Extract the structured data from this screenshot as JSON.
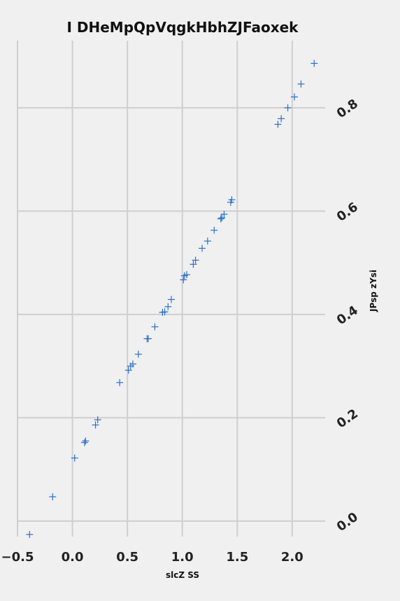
{
  "chart_data": {
    "type": "scatter",
    "title": "I DHeMpQpVqgkHbhZJFaoxek",
    "xlabel": "slcZ SS",
    "ylabel": "JPsp zYsi",
    "xlim": [
      -0.5,
      2.3
    ],
    "ylim": [
      -0.03,
      0.93
    ],
    "x_ticks": [
      -0.5,
      0.0,
      0.5,
      1.0,
      1.5,
      2.0
    ],
    "x_tick_labels": [
      "−0.5",
      "0.0",
      "0.5",
      "1.0",
      "1.5",
      "2.0"
    ],
    "y_ticks": [
      0.0,
      0.2,
      0.4,
      0.6,
      0.8
    ],
    "y_tick_labels": [
      "0.0",
      "0.2",
      "0.4",
      "0.6",
      "0.8"
    ],
    "grid": true,
    "marker": "+",
    "color": "#2a6fc9",
    "series": [
      {
        "points": [
          [
            -0.39,
            -0.026
          ],
          [
            -0.18,
            0.047
          ],
          [
            0.02,
            0.122
          ],
          [
            0.11,
            0.152
          ],
          [
            0.12,
            0.155
          ],
          [
            0.21,
            0.186
          ],
          [
            0.23,
            0.196
          ],
          [
            0.43,
            0.268
          ],
          [
            0.51,
            0.292
          ],
          [
            0.53,
            0.3
          ],
          [
            0.55,
            0.304
          ],
          [
            0.6,
            0.323
          ],
          [
            0.68,
            0.353
          ],
          [
            0.69,
            0.353
          ],
          [
            0.75,
            0.376
          ],
          [
            0.82,
            0.404
          ],
          [
            0.84,
            0.405
          ],
          [
            0.87,
            0.415
          ],
          [
            0.9,
            0.429
          ],
          [
            1.01,
            0.467
          ],
          [
            1.02,
            0.475
          ],
          [
            1.04,
            0.477
          ],
          [
            1.1,
            0.497
          ],
          [
            1.12,
            0.505
          ],
          [
            1.18,
            0.528
          ],
          [
            1.23,
            0.542
          ],
          [
            1.29,
            0.563
          ],
          [
            1.35,
            0.585
          ],
          [
            1.36,
            0.587
          ],
          [
            1.38,
            0.594
          ],
          [
            1.44,
            0.617
          ],
          [
            1.45,
            0.622
          ],
          [
            1.87,
            0.768
          ],
          [
            1.9,
            0.779
          ],
          [
            1.96,
            0.8
          ],
          [
            2.02,
            0.821
          ],
          [
            2.08,
            0.846
          ],
          [
            2.2,
            0.886
          ]
        ]
      }
    ]
  }
}
